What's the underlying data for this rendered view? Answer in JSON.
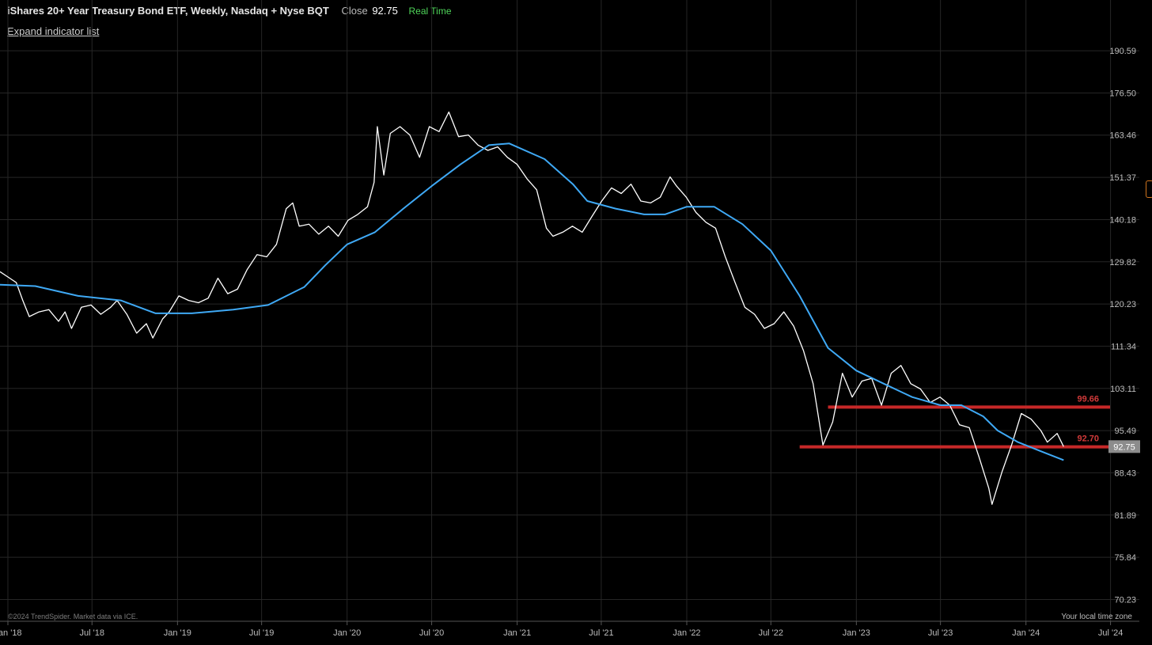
{
  "header": {
    "title": "iShares 20+ Year Treasury Bond ETF, Weekly, Nasdaq + Nyse BQT",
    "close_label": "Close",
    "close_value": "92.75",
    "realtime": "Real Time",
    "expand_indicators": "Expand indicator list"
  },
  "footer": {
    "copyright": "©2024 TrendSpider. Market data via ICE.",
    "timezone": "Your local time zone"
  },
  "colors": {
    "background": "#000000",
    "price": "#ffffff",
    "moving_average": "#3fa9f5",
    "level": "#c62828",
    "badge": "#8c8c8c",
    "grid": "#262626"
  },
  "chart_data": {
    "type": "line",
    "title": "iShares 20+ Year Treasury Bond ETF, Weekly, Nasdaq + Nyse BQT",
    "xlabel": "",
    "ylabel": "",
    "xlim": [
      "2017-12-15",
      "2024-09-01"
    ],
    "ylim": [
      67.5,
      194.5
    ],
    "grid": true,
    "legend": "none",
    "y_ticks": [
      190.59,
      176.5,
      163.46,
      151.37,
      140.18,
      129.82,
      120.23,
      111.34,
      103.11,
      95.49,
      88.43,
      81.89,
      75.84,
      70.23
    ],
    "x_ticks": [
      {
        "label": "Jan '18",
        "date": "2018-01-01"
      },
      {
        "label": "Jul '18",
        "date": "2018-07-01"
      },
      {
        "label": "Jan '19",
        "date": "2019-01-01"
      },
      {
        "label": "Jul '19",
        "date": "2019-07-01"
      },
      {
        "label": "Jan '20",
        "date": "2020-01-01"
      },
      {
        "label": "Jul '20",
        "date": "2020-07-01"
      },
      {
        "label": "Jan '21",
        "date": "2021-01-01"
      },
      {
        "label": "Jul '21",
        "date": "2021-07-01"
      },
      {
        "label": "Jan '22",
        "date": "2022-01-01"
      },
      {
        "label": "Jul '22",
        "date": "2022-07-01"
      },
      {
        "label": "Jan '23",
        "date": "2023-01-01"
      },
      {
        "label": "Jul '23",
        "date": "2023-07-01"
      },
      {
        "label": "Jan '24",
        "date": "2024-01-01"
      },
      {
        "label": "Jul '24",
        "date": "2024-07-01"
      }
    ],
    "series": [
      {
        "role": "price",
        "points": [
          [
            "2017-12-15",
            127.5
          ],
          [
            "2018-01-05",
            126.0
          ],
          [
            "2018-01-19",
            125.0
          ],
          [
            "2018-02-02",
            121.0
          ],
          [
            "2018-02-16",
            117.5
          ],
          [
            "2018-03-09",
            118.5
          ],
          [
            "2018-03-30",
            119.0
          ],
          [
            "2018-04-20",
            116.5
          ],
          [
            "2018-05-04",
            118.5
          ],
          [
            "2018-05-18",
            115.0
          ],
          [
            "2018-06-08",
            119.5
          ],
          [
            "2018-06-29",
            120.0
          ],
          [
            "2018-07-20",
            118.0
          ],
          [
            "2018-08-10",
            119.5
          ],
          [
            "2018-08-24",
            121.0
          ],
          [
            "2018-09-14",
            118.0
          ],
          [
            "2018-10-05",
            114.0
          ],
          [
            "2018-10-26",
            116.0
          ],
          [
            "2018-11-09",
            113.0
          ],
          [
            "2018-11-30",
            117.0
          ],
          [
            "2018-12-14",
            118.5
          ],
          [
            "2019-01-04",
            122.0
          ],
          [
            "2019-01-25",
            121.0
          ],
          [
            "2019-02-15",
            120.5
          ],
          [
            "2019-03-08",
            121.5
          ],
          [
            "2019-03-29",
            126.0
          ],
          [
            "2019-04-19",
            122.5
          ],
          [
            "2019-05-10",
            123.5
          ],
          [
            "2019-05-31",
            128.0
          ],
          [
            "2019-06-21",
            131.5
          ],
          [
            "2019-07-12",
            131.0
          ],
          [
            "2019-08-02",
            134.0
          ],
          [
            "2019-08-23",
            143.0
          ],
          [
            "2019-09-06",
            144.5
          ],
          [
            "2019-09-20",
            138.5
          ],
          [
            "2019-10-11",
            139.0
          ],
          [
            "2019-11-01",
            136.5
          ],
          [
            "2019-11-22",
            138.5
          ],
          [
            "2019-12-13",
            136.0
          ],
          [
            "2020-01-03",
            140.0
          ],
          [
            "2020-01-24",
            141.5
          ],
          [
            "2020-02-14",
            143.5
          ],
          [
            "2020-02-28",
            150.0
          ],
          [
            "2020-03-06",
            166.0
          ],
          [
            "2020-03-20",
            152.0
          ],
          [
            "2020-04-03",
            164.0
          ],
          [
            "2020-04-24",
            166.0
          ],
          [
            "2020-05-15",
            163.5
          ],
          [
            "2020-06-05",
            157.0
          ],
          [
            "2020-06-26",
            166.0
          ],
          [
            "2020-07-17",
            164.5
          ],
          [
            "2020-08-07",
            170.5
          ],
          [
            "2020-08-28",
            163.0
          ],
          [
            "2020-09-18",
            163.5
          ],
          [
            "2020-10-09",
            160.5
          ],
          [
            "2020-10-30",
            159.0
          ],
          [
            "2020-11-20",
            160.0
          ],
          [
            "2020-12-11",
            157.0
          ],
          [
            "2021-01-01",
            155.0
          ],
          [
            "2021-01-22",
            151.0
          ],
          [
            "2021-02-12",
            148.0
          ],
          [
            "2021-03-05",
            138.0
          ],
          [
            "2021-03-19",
            136.0
          ],
          [
            "2021-04-09",
            137.0
          ],
          [
            "2021-04-30",
            138.5
          ],
          [
            "2021-05-21",
            137.0
          ],
          [
            "2021-06-11",
            141.0
          ],
          [
            "2021-07-02",
            145.0
          ],
          [
            "2021-07-23",
            148.5
          ],
          [
            "2021-08-13",
            147.0
          ],
          [
            "2021-09-03",
            149.5
          ],
          [
            "2021-09-24",
            145.0
          ],
          [
            "2021-10-15",
            144.5
          ],
          [
            "2021-11-05",
            146.0
          ],
          [
            "2021-11-26",
            151.5
          ],
          [
            "2021-12-10",
            149.0
          ],
          [
            "2021-12-31",
            146.0
          ],
          [
            "2022-01-21",
            142.0
          ],
          [
            "2022-02-11",
            139.5
          ],
          [
            "2022-03-04",
            138.0
          ],
          [
            "2022-03-25",
            131.0
          ],
          [
            "2022-04-15",
            125.0
          ],
          [
            "2022-05-06",
            119.5
          ],
          [
            "2022-05-27",
            118.0
          ],
          [
            "2022-06-17",
            115.0
          ],
          [
            "2022-07-08",
            116.0
          ],
          [
            "2022-07-29",
            118.5
          ],
          [
            "2022-08-19",
            115.5
          ],
          [
            "2022-09-09",
            110.5
          ],
          [
            "2022-09-30",
            104.0
          ],
          [
            "2022-10-21",
            93.0
          ],
          [
            "2022-11-11",
            97.0
          ],
          [
            "2022-12-02",
            106.0
          ],
          [
            "2022-12-23",
            101.5
          ],
          [
            "2023-01-13",
            104.5
          ],
          [
            "2023-02-03",
            105.0
          ],
          [
            "2023-02-24",
            100.0
          ],
          [
            "2023-03-17",
            106.0
          ],
          [
            "2023-04-07",
            107.5
          ],
          [
            "2023-04-28",
            104.0
          ],
          [
            "2023-05-19",
            103.0
          ],
          [
            "2023-06-09",
            100.5
          ],
          [
            "2023-06-30",
            101.5
          ],
          [
            "2023-07-21",
            100.0
          ],
          [
            "2023-08-11",
            96.5
          ],
          [
            "2023-09-01",
            96.0
          ],
          [
            "2023-09-22",
            91.0
          ],
          [
            "2023-10-13",
            86.0
          ],
          [
            "2023-10-20",
            83.5
          ],
          [
            "2023-11-10",
            88.5
          ],
          [
            "2023-12-01",
            93.0
          ],
          [
            "2023-12-22",
            98.5
          ],
          [
            "2024-01-12",
            97.5
          ],
          [
            "2024-02-02",
            95.5
          ],
          [
            "2024-02-16",
            93.5
          ],
          [
            "2024-03-08",
            95.0
          ],
          [
            "2024-03-22",
            92.75
          ]
        ]
      },
      {
        "role": "moving-average",
        "points": [
          [
            "2017-12-15",
            124.5
          ],
          [
            "2018-03-01",
            124.2
          ],
          [
            "2018-06-01",
            122.0
          ],
          [
            "2018-09-01",
            121.0
          ],
          [
            "2018-11-15",
            118.2
          ],
          [
            "2019-02-01",
            118.2
          ],
          [
            "2019-05-01",
            119.0
          ],
          [
            "2019-07-15",
            120.0
          ],
          [
            "2019-10-01",
            124.0
          ],
          [
            "2019-11-15",
            129.0
          ],
          [
            "2020-01-01",
            134.0
          ],
          [
            "2020-03-01",
            137.0
          ],
          [
            "2020-05-01",
            143.0
          ],
          [
            "2020-07-01",
            149.0
          ],
          [
            "2020-09-01",
            155.0
          ],
          [
            "2020-11-01",
            160.5
          ],
          [
            "2020-12-15",
            161.0
          ],
          [
            "2021-03-01",
            156.5
          ],
          [
            "2021-05-01",
            149.5
          ],
          [
            "2021-06-01",
            145.0
          ],
          [
            "2021-08-01",
            143.0
          ],
          [
            "2021-10-01",
            141.5
          ],
          [
            "2021-11-15",
            141.5
          ],
          [
            "2022-01-01",
            143.5
          ],
          [
            "2022-03-01",
            143.5
          ],
          [
            "2022-05-01",
            139.0
          ],
          [
            "2022-07-01",
            132.5
          ],
          [
            "2022-09-01",
            122.0
          ],
          [
            "2022-11-01",
            111.0
          ],
          [
            "2023-01-01",
            106.5
          ],
          [
            "2023-03-01",
            104.0
          ],
          [
            "2023-05-01",
            101.5
          ],
          [
            "2023-07-01",
            100.0
          ],
          [
            "2023-08-15",
            100.0
          ],
          [
            "2023-10-01",
            98.0
          ],
          [
            "2023-11-01",
            95.5
          ],
          [
            "2023-12-15",
            93.5
          ],
          [
            "2024-02-01",
            92.0
          ],
          [
            "2024-03-22",
            90.5
          ]
        ]
      }
    ],
    "levels": [
      {
        "label": "99.66",
        "value": 99.66,
        "start": "2022-11-01"
      },
      {
        "label": "92.70",
        "value": 92.7,
        "start": "2022-09-01"
      }
    ],
    "last_price_badge": "92.75"
  }
}
